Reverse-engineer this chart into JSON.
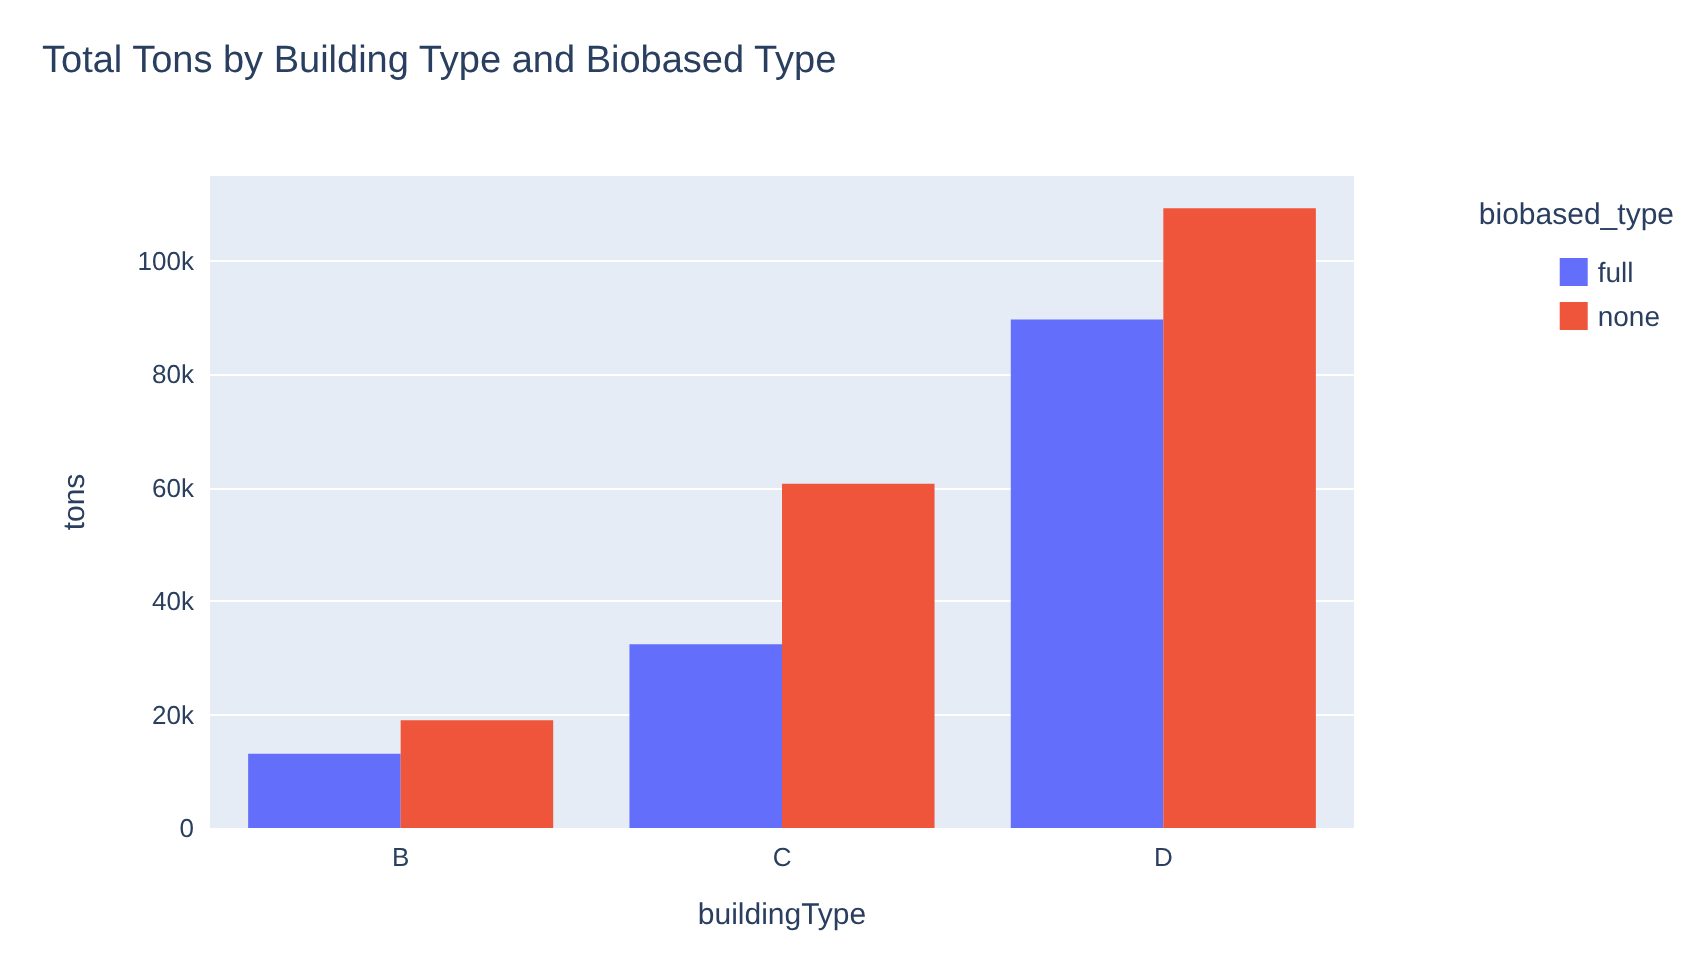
{
  "chart_data": {
    "type": "bar",
    "title": "Total Tons by Building Type and Biobased Type",
    "xlabel": "buildingType",
    "ylabel": "tons",
    "legend_title": "biobased_type",
    "categories": [
      "B",
      "C",
      "D"
    ],
    "series": [
      {
        "name": "full",
        "color": "#636efa",
        "values": [
          13100,
          32400,
          89700
        ]
      },
      {
        "name": "none",
        "color": "#ef553b",
        "values": [
          19000,
          60700,
          109300
        ]
      }
    ],
    "ylim": [
      0,
      115000
    ],
    "yticks": [
      {
        "value": 0,
        "label": "0"
      },
      {
        "value": 20000,
        "label": "20k"
      },
      {
        "value": 40000,
        "label": "40k"
      },
      {
        "value": 60000,
        "label": "60k"
      },
      {
        "value": 80000,
        "label": "80k"
      },
      {
        "value": 100000,
        "label": "100k"
      }
    ],
    "grid": "y",
    "legend": "top right"
  }
}
